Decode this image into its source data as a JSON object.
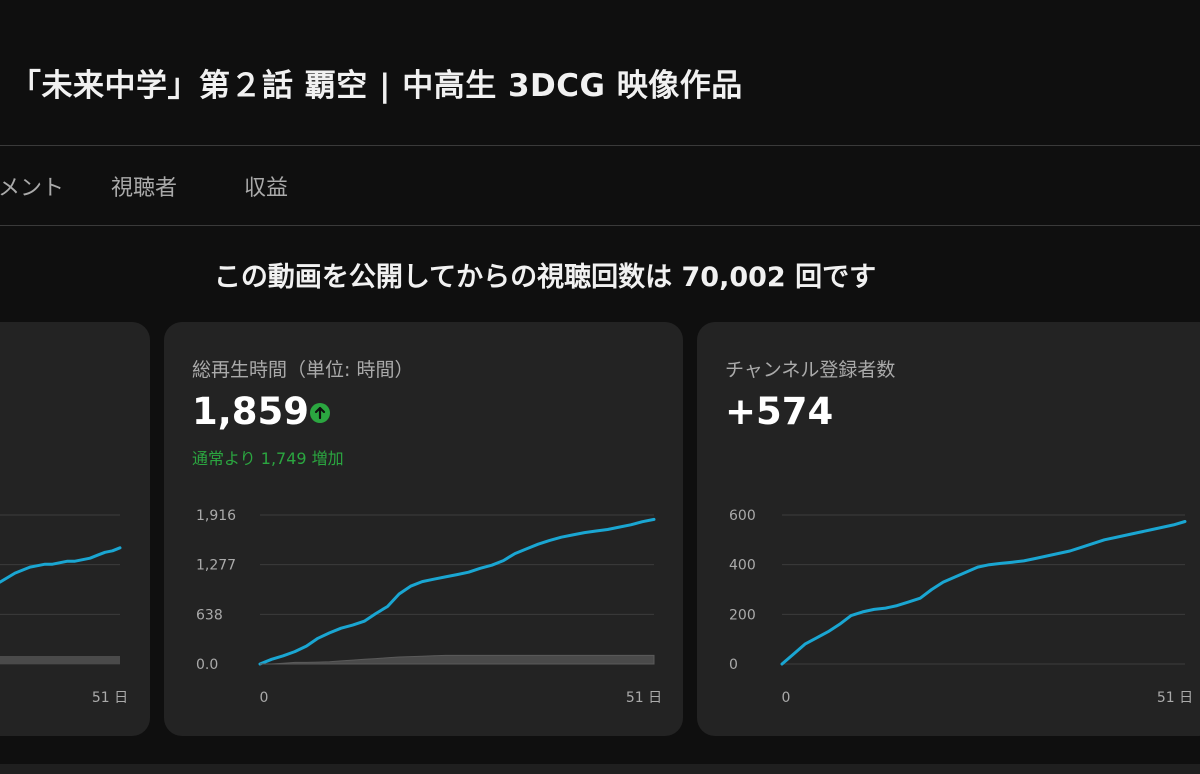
{
  "page_title": "「未来中学」第２話 覇空 | 中高生 3DCG 映像作品",
  "tabs": [
    "メント",
    "視聴者",
    "収益"
  ],
  "headline": "この動画を公開してからの視聴回数は 70,002 回です",
  "colors": {
    "accent": "#2ba640",
    "line": "#1aa6d2",
    "background": "#0f0f0f",
    "card": "#232323"
  },
  "cards": [
    {
      "label": "",
      "value": "",
      "chart_data": {
        "type": "line",
        "x_ticks": [
          "51 日"
        ],
        "series": [
          {
            "values": [
              0.55,
              0.58,
              0.61,
              0.63,
              0.65,
              0.66,
              0.67,
              0.67,
              0.68,
              0.69,
              0.69,
              0.7,
              0.71,
              0.73,
              0.75,
              0.76,
              0.78
            ]
          }
        ]
      }
    },
    {
      "label": "総再生時間（単位: 時間）",
      "value": "1,859",
      "trend_icon": "arrow-up-icon",
      "comparison": "通常より 1,749 増加",
      "chart_data": {
        "type": "line",
        "y_ticks": [
          "1,916",
          "1,277",
          "638",
          "0.0"
        ],
        "ylim": [
          0,
          1916
        ],
        "x_ticks": [
          "0",
          "51 日"
        ],
        "xlim": [
          0,
          51
        ],
        "series": [
          {
            "values": [
              0,
              60,
              105,
              160,
              230,
              330,
              400,
              460,
              500,
              550,
              650,
              740,
              900,
              1000,
              1060,
              1090,
              1120,
              1150,
              1180,
              1230,
              1270,
              1330,
              1420,
              1480,
              1540,
              1590,
              1630,
              1660,
              1690,
              1710,
              1730,
              1760,
              1790,
              1830,
              1859
            ],
            "style": "primary"
          },
          {
            "values": [
              0,
              0,
              10,
              20,
              20,
              25,
              30,
              40,
              50,
              60,
              70,
              80,
              90,
              95,
              100,
              105,
              110,
              110,
              110,
              110,
              110,
              110,
              110,
              110,
              110,
              110,
              110,
              110,
              110,
              110,
              110,
              110,
              110,
              110,
              110
            ],
            "style": "baseline"
          }
        ]
      }
    },
    {
      "label": "チャンネル登録者数",
      "value": "+574",
      "chart_data": {
        "type": "line",
        "y_ticks": [
          "600",
          "400",
          "200",
          "0"
        ],
        "ylim": [
          0,
          600
        ],
        "x_ticks": [
          "0",
          "51 日"
        ],
        "xlim": [
          0,
          51
        ],
        "series": [
          {
            "values": [
              0,
              40,
              80,
              105,
              130,
              160,
              195,
              210,
              220,
              225,
              235,
              250,
              265,
              300,
              330,
              350,
              370,
              390,
              400,
              405,
              410,
              415,
              425,
              435,
              445,
              455,
              470,
              485,
              500,
              510,
              520,
              530,
              540,
              550,
              560,
              574
            ],
            "style": "primary"
          }
        ]
      }
    }
  ]
}
